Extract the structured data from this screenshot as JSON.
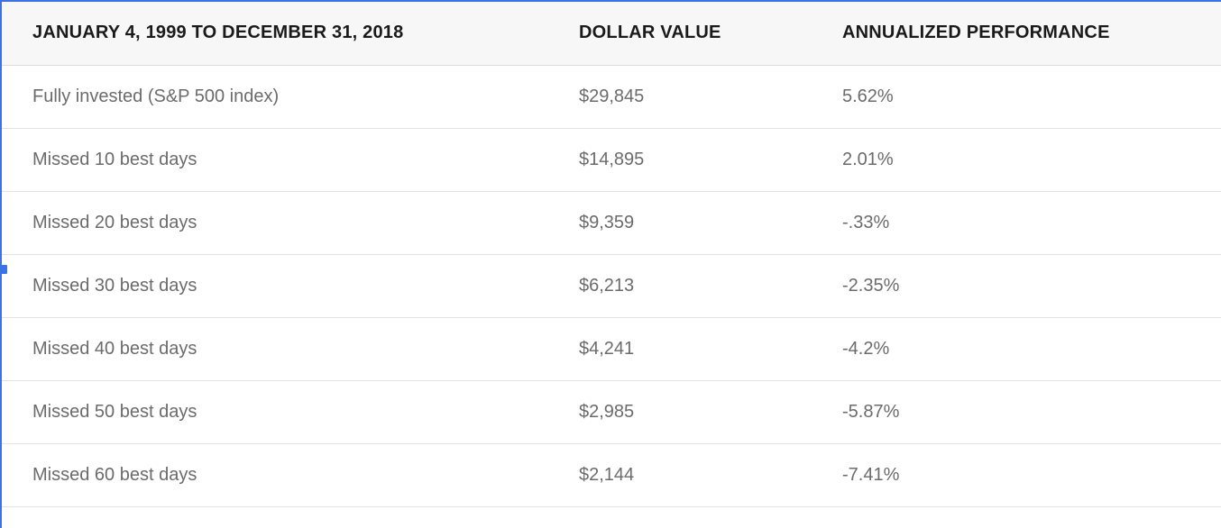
{
  "table": {
    "headers": [
      "JANUARY 4, 1999 TO DECEMBER 31, 2018",
      "DOLLAR VALUE",
      "ANNUALIZED PERFORMANCE"
    ],
    "rows": [
      [
        "Fully invested (S&P 500 index)",
        "$29,845",
        "5.62%"
      ],
      [
        "Missed 10 best days",
        "$14,895",
        "2.01%"
      ],
      [
        "Missed 20 best days",
        "$9,359",
        "-.33%"
      ],
      [
        "Missed 30 best days",
        "$6,213",
        "-2.35%"
      ],
      [
        "Missed 40 best days",
        "$4,241",
        "-4.2%"
      ],
      [
        "Missed 50 best days",
        "$2,985",
        "-5.87%"
      ],
      [
        "Missed 60 best days",
        "$2,144",
        "-7.41%"
      ]
    ]
  },
  "colors": {
    "selection": "#3b73e6",
    "header_bg": "#f7f7f7",
    "header_text": "#1a1a1a",
    "cell_text": "#6b6b6b"
  }
}
